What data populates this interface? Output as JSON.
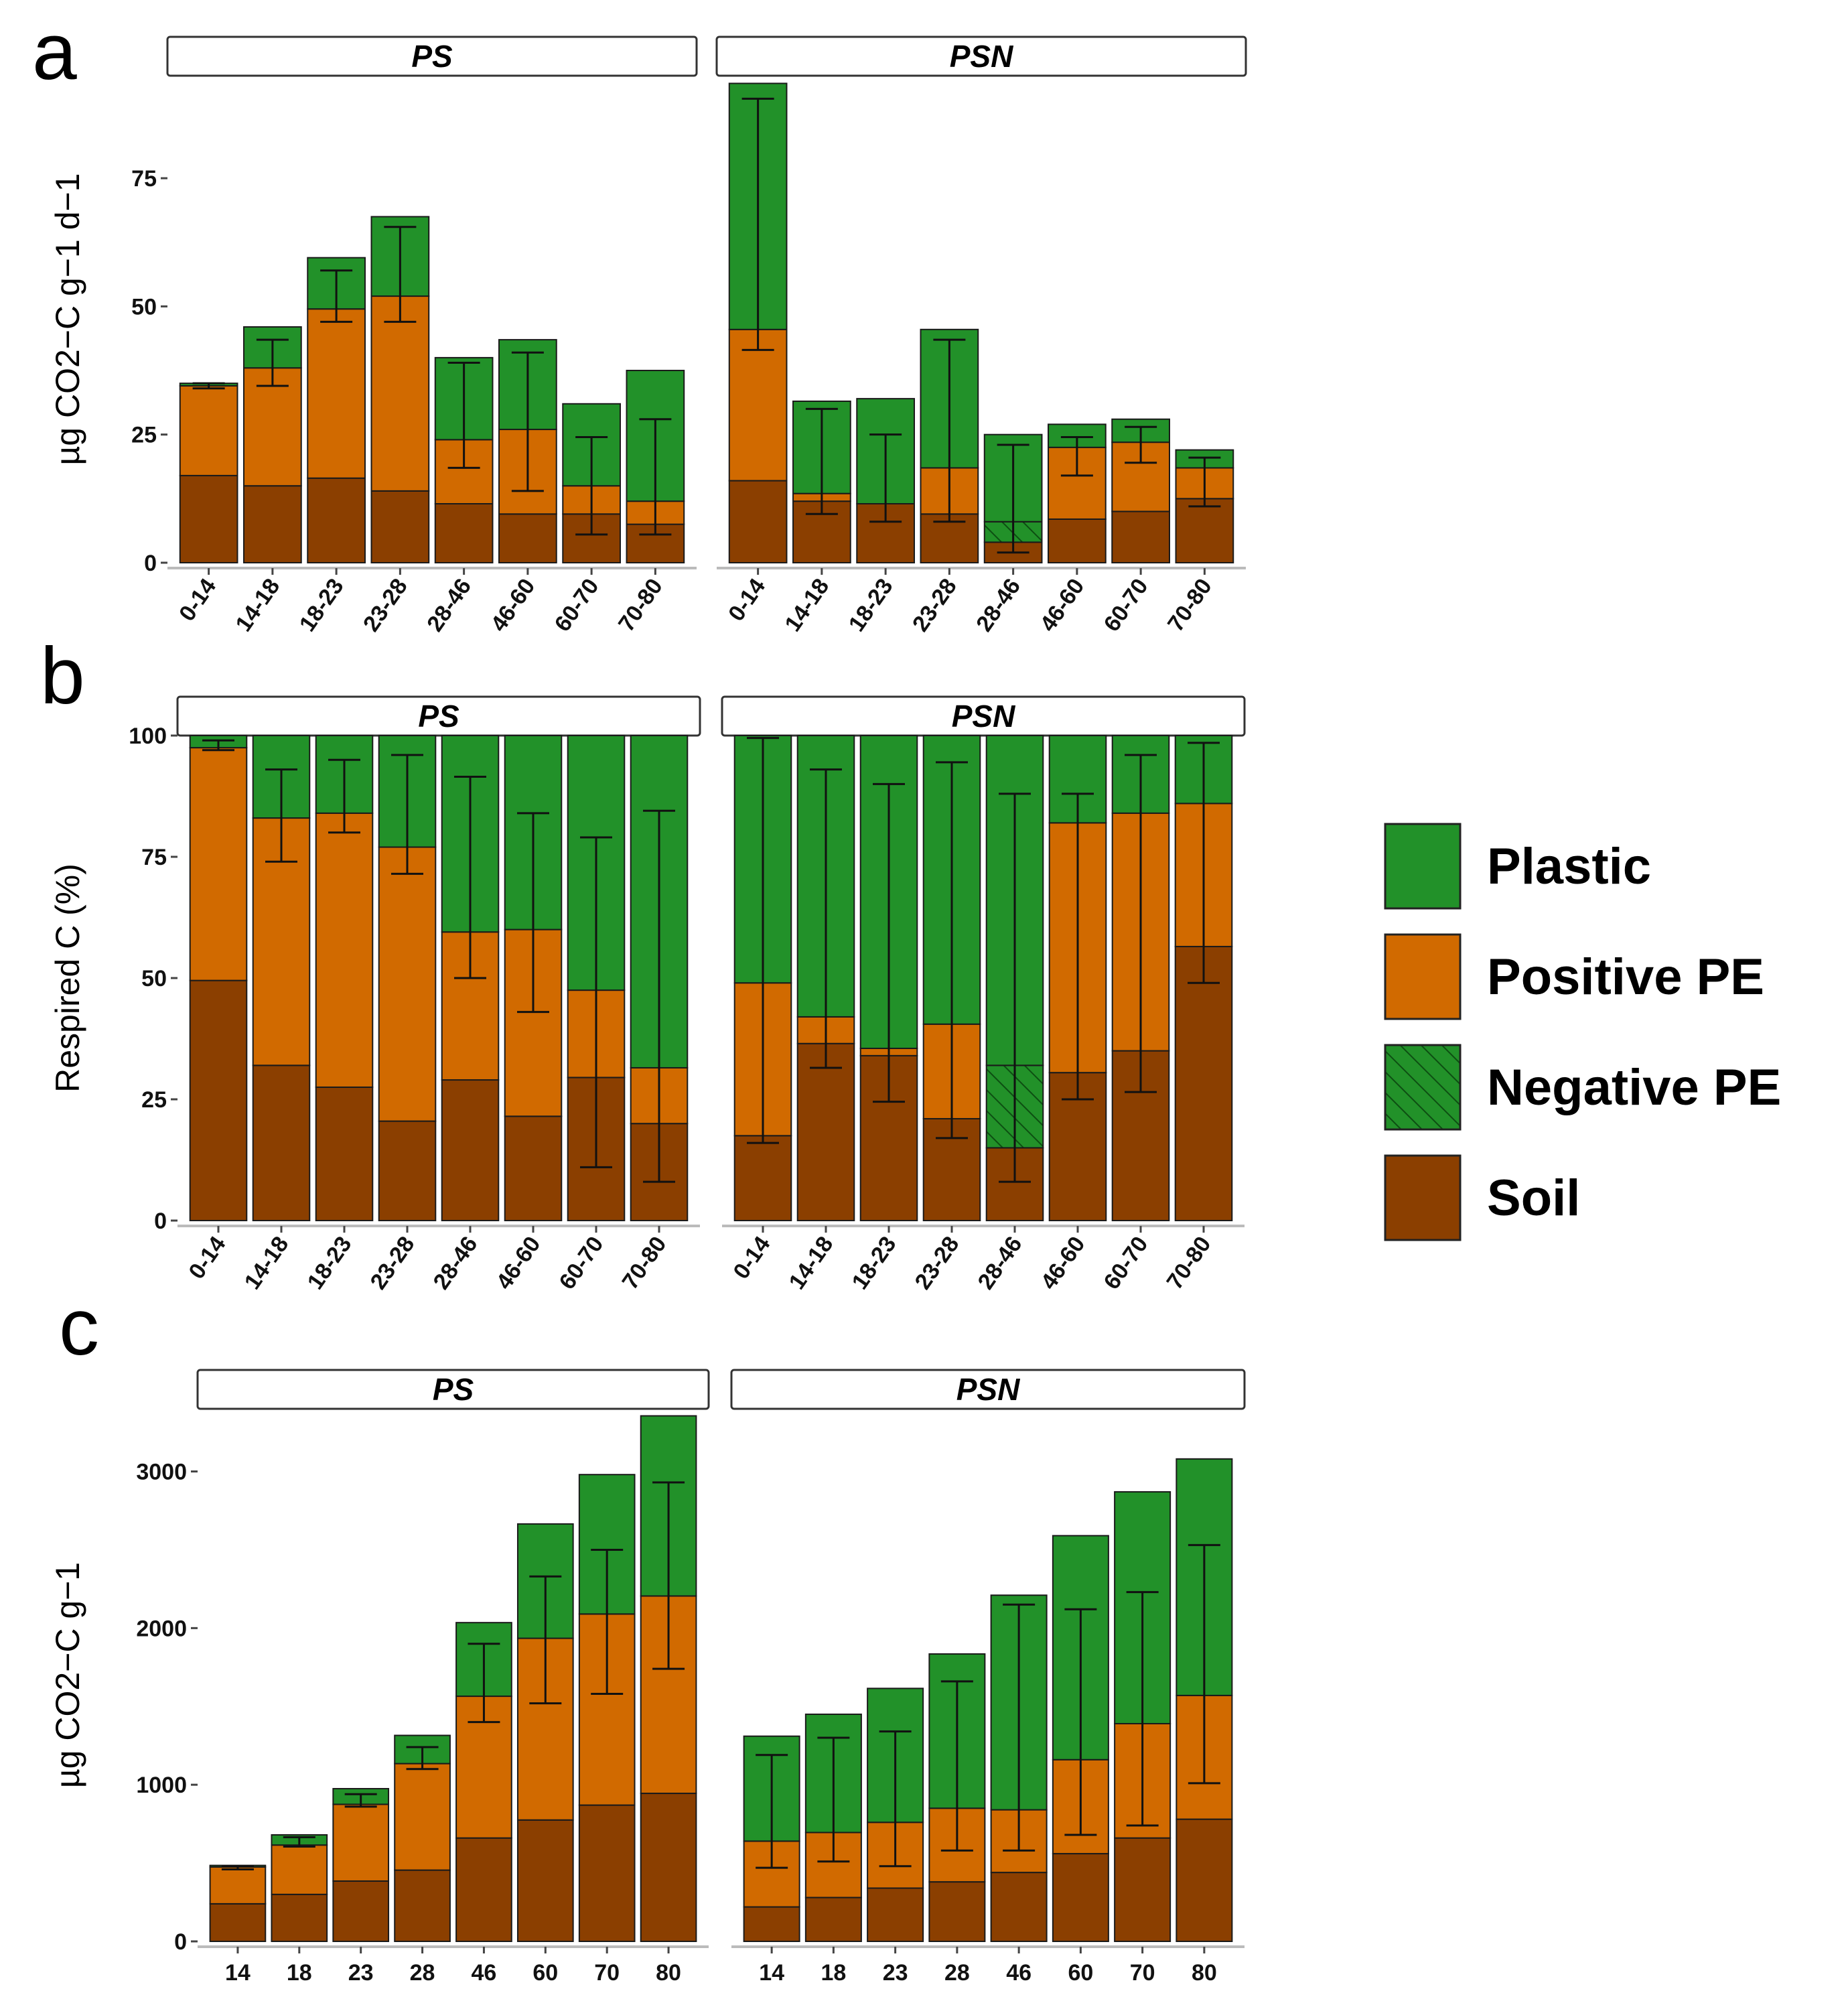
{
  "colors": {
    "plastic": "#229129",
    "positive_pe": "#D16A00",
    "negative_pe": "#229129",
    "soil": "#8B3F00",
    "strip_fill": "#ffffff",
    "axis": "#bbbbbb"
  },
  "panel_letters": [
    "a",
    "b",
    "c"
  ],
  "legend": {
    "items": [
      {
        "key": "plastic",
        "label": "Plastic"
      },
      {
        "key": "positive_pe",
        "label": "Positive PE"
      },
      {
        "key": "negative_pe",
        "label": "Negative PE",
        "hatched": true
      },
      {
        "key": "soil",
        "label": "Soil"
      }
    ]
  },
  "chart_data": [
    {
      "id": "a",
      "type": "bar",
      "stacked": true,
      "ylabel": "µg CO2−C g−1 d−1",
      "ylim": [
        0,
        95
      ],
      "yticks": [
        0,
        25,
        50,
        75
      ],
      "categories": [
        "0-14",
        "14-18",
        "18-23",
        "23-28",
        "28-46",
        "46-60",
        "60-70",
        "70-80"
      ],
      "facets": [
        {
          "name": "PS",
          "soil": [
            17,
            15,
            16.5,
            14,
            11.5,
            9.5,
            9.5,
            7.5
          ],
          "positive_pe": [
            17.5,
            23,
            33,
            38,
            12.5,
            16.5,
            5.5,
            4.5
          ],
          "negative_pe": [
            0,
            0,
            0,
            0,
            0,
            0,
            0,
            0
          ],
          "plastic": [
            0.5,
            8,
            10,
            15.5,
            16,
            17.5,
            16,
            25.5
          ],
          "errors": [
            {
              "low": 34,
              "high": 35
            },
            {
              "low": 34.5,
              "high": 43.5
            },
            {
              "low": 47,
              "high": 57
            },
            {
              "low": 47,
              "high": 65.5
            },
            {
              "low": 18.5,
              "high": 39
            },
            {
              "low": 14,
              "high": 41
            },
            {
              "low": 5.5,
              "high": 24.5
            },
            {
              "low": 5.5,
              "high": 28
            }
          ]
        },
        {
          "name": "PSN",
          "soil": [
            16,
            12,
            11.5,
            9.5,
            4,
            8.5,
            10,
            12.5
          ],
          "positive_pe": [
            29.5,
            1.5,
            0,
            9,
            0,
            14,
            13.5,
            6
          ],
          "negative_pe": [
            0,
            0,
            0,
            0,
            4,
            0,
            0,
            0
          ],
          "plastic": [
            48,
            18,
            20.5,
            27,
            17,
            4.5,
            4.5,
            3.5
          ],
          "errors": [
            {
              "low": 41.5,
              "high": 90.5
            },
            {
              "low": 9.5,
              "high": 30
            },
            {
              "low": 8,
              "high": 25
            },
            {
              "low": 8,
              "high": 43.5
            },
            {
              "low": 2,
              "high": 23
            },
            {
              "low": 17,
              "high": 24.5
            },
            {
              "low": 19.5,
              "high": 26.5
            },
            {
              "low": 11,
              "high": 20.5
            }
          ]
        }
      ]
    },
    {
      "id": "b",
      "type": "bar",
      "stacked": true,
      "ylabel": "Respired C (%)",
      "ylim": [
        0,
        100
      ],
      "yticks": [
        0,
        25,
        50,
        75,
        100
      ],
      "categories": [
        "0-14",
        "14-18",
        "18-23",
        "23-28",
        "28-46",
        "46-60",
        "60-70",
        "70-80"
      ],
      "facets": [
        {
          "name": "PS",
          "soil": [
            49.5,
            32,
            27.5,
            20.5,
            29,
            21.5,
            29.5,
            20
          ],
          "positive_pe": [
            48,
            51,
            56.5,
            56.5,
            30.5,
            38.5,
            18,
            11.5
          ],
          "negative_pe": [
            0,
            0,
            0,
            0,
            0,
            0,
            0,
            0
          ],
          "plastic": [
            2.5,
            17,
            16,
            23,
            40.5,
            40,
            52.5,
            68.5
          ],
          "errors": [
            {
              "low": 97,
              "high": 99
            },
            {
              "low": 74,
              "high": 93
            },
            {
              "low": 80,
              "high": 95
            },
            {
              "low": 71.5,
              "high": 96
            },
            {
              "low": 50,
              "high": 91.5
            },
            {
              "low": 43,
              "high": 84
            },
            {
              "low": 11,
              "high": 79
            },
            {
              "low": 8,
              "high": 84.5
            }
          ]
        },
        {
          "name": "PSN",
          "soil": [
            17.5,
            36.5,
            34,
            21,
            15,
            30.5,
            35,
            56.5
          ],
          "positive_pe": [
            31.5,
            5.5,
            1.5,
            19.5,
            0,
            51.5,
            49,
            29.5
          ],
          "negative_pe": [
            0,
            0,
            0,
            0,
            17,
            0,
            0,
            0
          ],
          "plastic": [
            51,
            58,
            64.5,
            59.5,
            68,
            18,
            16,
            14
          ],
          "errors": [
            {
              "low": 16,
              "high": 99.5
            },
            {
              "low": 31.5,
              "high": 93
            },
            {
              "low": 24.5,
              "high": 90
            },
            {
              "low": 17,
              "high": 94.5
            },
            {
              "low": 8,
              "high": 88
            },
            {
              "low": 25,
              "high": 88
            },
            {
              "low": 26.5,
              "high": 96
            },
            {
              "low": 49,
              "high": 98.5
            }
          ]
        }
      ]
    },
    {
      "id": "c",
      "type": "bar",
      "stacked": true,
      "ylabel": "µg CO2−C g−1",
      "ylim": [
        0,
        3400
      ],
      "yticks": [
        0,
        1000,
        2000,
        3000
      ],
      "categories": [
        "14",
        "18",
        "23",
        "28",
        "46",
        "60",
        "70",
        "80"
      ],
      "facets": [
        {
          "name": "PS",
          "soil": [
            240,
            300,
            385,
            455,
            660,
            775,
            870,
            945
          ],
          "positive_pe": [
            235,
            315,
            490,
            680,
            905,
            1160,
            1220,
            1260
          ],
          "negative_pe": [
            0,
            0,
            0,
            0,
            0,
            0,
            0,
            0
          ],
          "plastic": [
            10,
            65,
            100,
            180,
            470,
            730,
            890,
            1150
          ],
          "errors": [
            {
              "low": 460,
              "high": 480
            },
            {
              "low": 605,
              "high": 665
            },
            {
              "low": 860,
              "high": 940
            },
            {
              "low": 1100,
              "high": 1240
            },
            {
              "low": 1400,
              "high": 1900
            },
            {
              "low": 1520,
              "high": 2330
            },
            {
              "low": 1580,
              "high": 2500
            },
            {
              "low": 1740,
              "high": 2930
            }
          ]
        },
        {
          "name": "PSN",
          "soil": [
            220,
            280,
            340,
            380,
            440,
            560,
            660,
            780
          ],
          "positive_pe": [
            420,
            415,
            420,
            470,
            400,
            600,
            730,
            790
          ],
          "negative_pe": [
            0,
            0,
            0,
            0,
            0,
            0,
            0,
            0
          ],
          "plastic": [
            670,
            755,
            855,
            985,
            1370,
            1430,
            1480,
            1510
          ],
          "errors": [
            {
              "low": 470,
              "high": 1190
            },
            {
              "low": 510,
              "high": 1300
            },
            {
              "low": 480,
              "high": 1340
            },
            {
              "low": 580,
              "high": 1660
            },
            {
              "low": 580,
              "high": 2150
            },
            {
              "low": 680,
              "high": 2120
            },
            {
              "low": 740,
              "high": 2230
            },
            {
              "low": 1010,
              "high": 2530
            }
          ]
        }
      ]
    }
  ]
}
